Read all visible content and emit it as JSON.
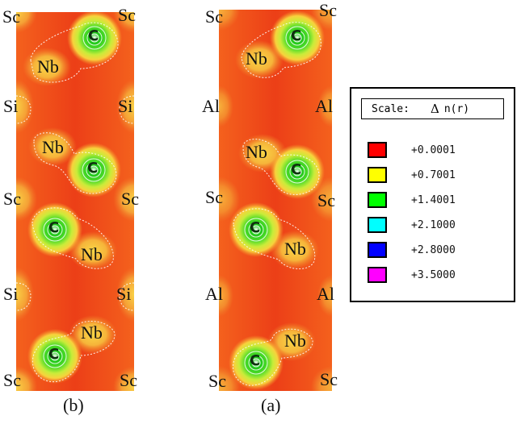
{
  "panels": {
    "b": {
      "caption": "(b)",
      "labels": {
        "sc_tl": "Sc",
        "sc_tr": "Sc",
        "nb_1": "Nb",
        "si_l1": "Si",
        "si_r1": "Si",
        "nb_2": "Nb",
        "sc_ml": "Sc",
        "sc_mr": "Sc",
        "nb_3": "Nb",
        "si_l2": "Si",
        "si_r2": "Si",
        "nb_4": "Nb",
        "sc_bl": "Sc",
        "sc_br": "Sc"
      }
    },
    "a": {
      "caption": "(a)",
      "labels": {
        "sc_tl": "Sc",
        "sc_tr": "Sc",
        "nb_1": "Nb",
        "al_l1": "Al",
        "al_r1": "Al",
        "nb_2": "Nb",
        "sc_ml": "Sc",
        "sc_mr": "Sc",
        "nb_3": "Nb",
        "al_l2": "Al",
        "al_r2": "Al",
        "nb_4": "Nb",
        "sc_bl": "Sc",
        "sc_br": "Sc"
      }
    }
  },
  "legend": {
    "title_scale": "Scale:",
    "title_delta": "Δ",
    "title_n": "n(r)",
    "entries": [
      {
        "value": "+0.0001",
        "color": "#ff0000"
      },
      {
        "value": "+0.7001",
        "color": "#ffff00"
      },
      {
        "value": "+1.4001",
        "color": "#00ff00"
      },
      {
        "value": "+2.1000",
        "color": "#00ffff"
      },
      {
        "value": "+2.8000",
        "color": "#0000ff"
      },
      {
        "value": "+3.5000",
        "color": "#ff00ff"
      }
    ]
  },
  "colors": {
    "background_red": "#ee3d16",
    "orange": "#f46a1e",
    "yellow": "#f7c93a",
    "green": "#47d823",
    "contour": "#ffffff"
  },
  "icons": {
    "carbon_atom": "C"
  }
}
